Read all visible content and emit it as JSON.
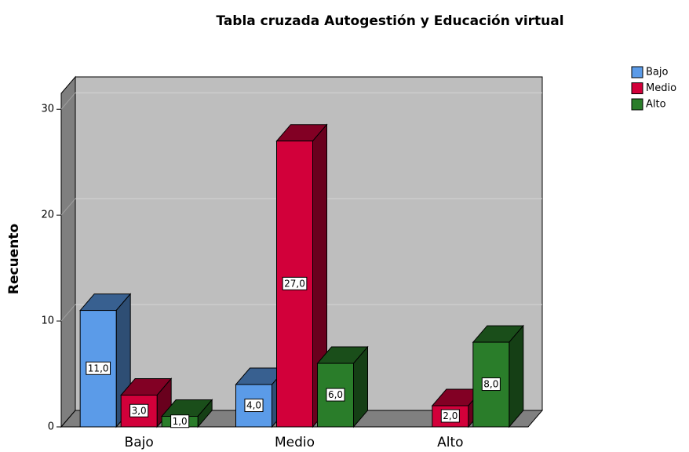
{
  "chart_data": {
    "type": "bar3d",
    "title": "Tabla cruzada Autogestión y Educación virtual",
    "y_label": "Recuento",
    "categories": [
      "Bajo",
      "Medio",
      "Alto"
    ],
    "series": [
      {
        "name": "Bajo",
        "color": "#5b9be8",
        "values": [
          11,
          4,
          null
        ],
        "value_labels": [
          "11,0",
          "4,0",
          null
        ]
      },
      {
        "name": "Medio",
        "color": "#d2003a",
        "values": [
          3,
          27,
          2
        ],
        "value_labels": [
          "3,0",
          "27,0",
          "2,0"
        ]
      },
      {
        "name": "Alto",
        "color": "#2a7d2a",
        "values": [
          1,
          6,
          8
        ],
        "value_labels": [
          "1,0",
          "6,0",
          "8,0"
        ]
      }
    ],
    "ylim": [
      0,
      31.5
    ],
    "yticks": [
      0,
      10,
      20,
      30
    ],
    "grid": true,
    "legend": "top-right"
  }
}
